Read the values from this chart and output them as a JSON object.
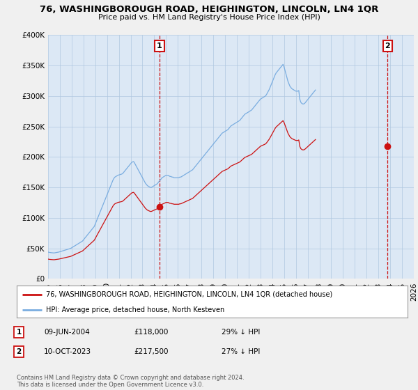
{
  "title": "76, WASHINGBOROUGH ROAD, HEIGHINGTON, LINCOLN, LN4 1QR",
  "subtitle": "Price paid vs. HM Land Registry's House Price Index (HPI)",
  "sale1_date": "09-JUN-2004",
  "sale1_price": 118000,
  "sale1_label": "29% ↓ HPI",
  "sale2_date": "10-OCT-2023",
  "sale2_price": 217500,
  "sale2_label": "27% ↓ HPI",
  "legend_line1": "76, WASHINGBOROUGH ROAD, HEIGHINGTON, LINCOLN, LN4 1QR (detached house)",
  "legend_line2": "HPI: Average price, detached house, North Kesteven",
  "footer": "Contains HM Land Registry data © Crown copyright and database right 2024.\nThis data is licensed under the Open Government Licence v3.0.",
  "hpi_color": "#7aade0",
  "sale_color": "#cc1111",
  "vline_color": "#cc1111",
  "bg_color": "#f0f0f0",
  "plot_bg": "#dce8f5",
  "ylim": [
    0,
    400000
  ],
  "yticks": [
    0,
    50000,
    100000,
    150000,
    200000,
    250000,
    300000,
    350000,
    400000
  ],
  "xmin": 1995,
  "xmax": 2026,
  "sale1_x": 2004.44,
  "sale2_x": 2023.78,
  "hpi_monthly": {
    "start_year": 1995,
    "start_month": 1,
    "values": [
      44000,
      43500,
      43200,
      43000,
      42800,
      42600,
      42500,
      42800,
      43100,
      43400,
      43700,
      44000,
      44500,
      45000,
      45500,
      46000,
      46500,
      47000,
      47500,
      48000,
      48500,
      49000,
      49500,
      50000,
      51000,
      52000,
      53000,
      54000,
      55000,
      56000,
      57000,
      58000,
      59000,
      60000,
      61000,
      62000,
      64000,
      66000,
      68000,
      70000,
      72000,
      74000,
      76000,
      78000,
      80000,
      82000,
      84000,
      86000,
      90000,
      94000,
      98000,
      102000,
      106000,
      110000,
      114000,
      118000,
      122000,
      126000,
      130000,
      134000,
      138000,
      142000,
      146000,
      150000,
      154000,
      158000,
      162000,
      165000,
      167000,
      168000,
      169000,
      170000,
      170500,
      171000,
      171500,
      172000,
      173000,
      175000,
      177000,
      179000,
      181000,
      183000,
      185000,
      187000,
      189000,
      191000,
      192000,
      192500,
      190000,
      187000,
      184000,
      181000,
      178000,
      175000,
      172000,
      169000,
      166000,
      163000,
      160000,
      157000,
      155000,
      153000,
      152000,
      151000,
      150000,
      150000,
      151000,
      152000,
      153000,
      154000,
      155000,
      156000,
      158000,
      160000,
      162000,
      164000,
      166000,
      167000,
      168000,
      169000,
      170000,
      170000,
      170000,
      169000,
      168000,
      168000,
      167000,
      167000,
      166000,
      166000,
      166000,
      166000,
      166000,
      166000,
      167000,
      167000,
      168000,
      169000,
      170000,
      171000,
      172000,
      173000,
      174000,
      175000,
      176000,
      177000,
      178000,
      179000,
      181000,
      183000,
      185000,
      187000,
      189000,
      191000,
      193000,
      195000,
      197000,
      199000,
      201000,
      203000,
      205000,
      207000,
      209000,
      211000,
      213000,
      215000,
      217000,
      219000,
      221000,
      223000,
      225000,
      227000,
      229000,
      231000,
      233000,
      235000,
      237000,
      239000,
      240000,
      241000,
      242000,
      243000,
      244000,
      245000,
      247000,
      249000,
      251000,
      252000,
      253000,
      254000,
      255000,
      256000,
      257000,
      258000,
      259000,
      260000,
      262000,
      264000,
      266000,
      268000,
      270000,
      271000,
      272000,
      273000,
      274000,
      275000,
      276000,
      277000,
      279000,
      281000,
      283000,
      285000,
      287000,
      289000,
      291000,
      293000,
      295000,
      296000,
      297000,
      298000,
      299000,
      300000,
      302000,
      305000,
      308000,
      311000,
      315000,
      319000,
      323000,
      327000,
      331000,
      335000,
      338000,
      340000,
      342000,
      344000,
      346000,
      348000,
      350000,
      352000,
      348000,
      342000,
      336000,
      330000,
      324000,
      320000,
      316000,
      314000,
      312000,
      311000,
      310000,
      309000,
      308000,
      308000,
      308000,
      309000,
      295000,
      290000,
      288000,
      287000,
      287000,
      288000,
      290000,
      292000,
      294000,
      296000,
      298000,
      300000,
      302000,
      304000,
      306000,
      308000,
      310000
    ]
  }
}
